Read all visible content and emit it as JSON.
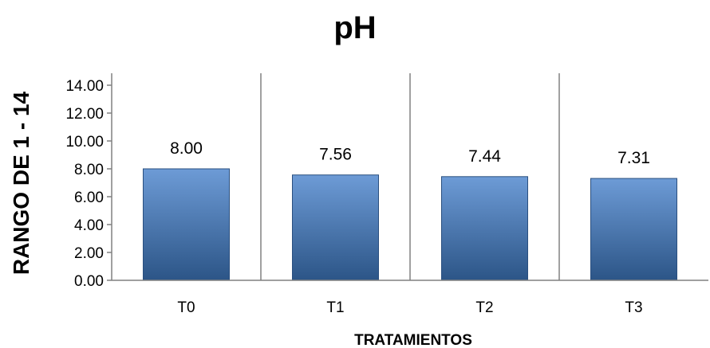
{
  "chart_data": {
    "type": "bar",
    "title": "pH",
    "xlabel": "TRATAMIENTOS",
    "ylabel": "RANGO DE 1 - 14",
    "categories": [
      "T0",
      "T1",
      "T2",
      "T3"
    ],
    "values": [
      8.0,
      7.56,
      7.44,
      7.31
    ],
    "data_labels": [
      "8.00",
      "7.56",
      "7.44",
      "7.31"
    ],
    "ylim": [
      0,
      14
    ],
    "yticks": [
      "0.00",
      "2.00",
      "4.00",
      "6.00",
      "8.00",
      "10.00",
      "12.00",
      "14.00"
    ],
    "grid": false,
    "category_separators": true,
    "legend": "none",
    "bar_color": "#4f81bd",
    "bar_color_dark": "#2c5587",
    "bar_color_light": "#6d9bd6"
  }
}
